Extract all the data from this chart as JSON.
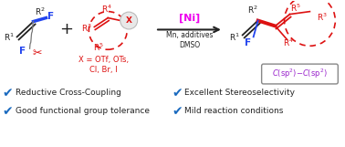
{
  "bg_color": "#ffffff",
  "red_color": "#dd1111",
  "blue_color": "#2244ee",
  "black_color": "#222222",
  "ni_color": "#ee00ee",
  "check_color": "#1a6abf",
  "purple_color": "#9922cc",
  "box_color": "#aaaaaa",
  "check1": "Reductive Cross-Coupling",
  "check2": "Good functional group tolerance",
  "check3": "Excellent Stereoselectivity",
  "check4": "Mild reaction conditions",
  "ni_label": "[Ni]",
  "conditions1": "Mn, additives",
  "conditions2": "DMSO",
  "x_text1": "X = OTf, OTs,",
  "x_text2": "Cl, Br, I",
  "figsize": [
    3.78,
    1.61
  ],
  "dpi": 100
}
